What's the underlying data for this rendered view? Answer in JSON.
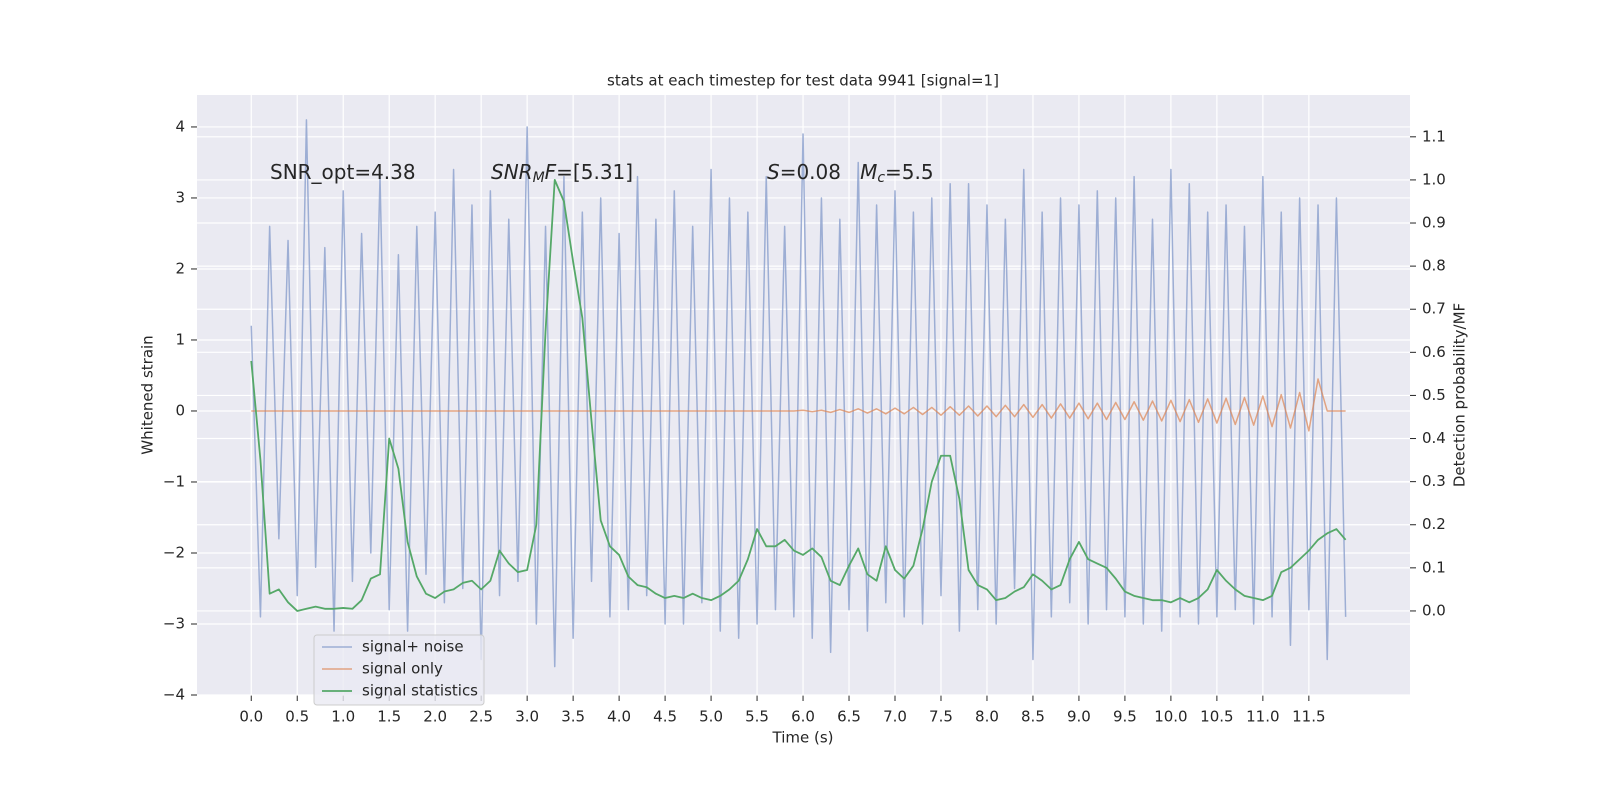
{
  "chart_data": {
    "type": "line",
    "title": "stats at each timestep for test data 9941 [signal=1]",
    "x_label": "Time (s)",
    "y_label": "Whitened strain",
    "y2_label": "Detection probability/MF",
    "annotations": [
      {
        "parts": [
          {
            "text": "SNR_opt=4.38"
          }
        ]
      },
      {
        "parts": [
          {
            "text": "SNR",
            "style": "italic"
          },
          {
            "text": "M",
            "style": "sub"
          },
          {
            "text": "F",
            "style": "italic"
          },
          {
            "text": "=[5.31]"
          }
        ]
      },
      {
        "parts": [
          {
            "text": "S",
            "style": "italic"
          },
          {
            "text": "=0.08   "
          },
          {
            "text": "M",
            "style": "italic"
          },
          {
            "text": "c",
            "style": "sub"
          },
          {
            "text": "=5.5"
          }
        ]
      }
    ],
    "x": [
      0,
      0.1,
      0.2,
      0.3,
      0.4,
      0.5,
      0.6,
      0.7,
      0.8,
      0.9,
      1,
      1.1,
      1.2,
      1.3,
      1.4,
      1.5,
      1.6,
      1.7,
      1.8,
      1.9,
      2,
      2.1,
      2.2,
      2.3,
      2.4,
      2.5,
      2.6,
      2.7,
      2.8,
      2.9,
      3,
      3.1,
      3.2,
      3.3,
      3.4,
      3.5,
      3.6,
      3.7,
      3.8,
      3.9,
      4,
      4.1,
      4.2,
      4.3,
      4.4,
      4.5,
      4.6,
      4.7,
      4.8,
      4.9,
      5,
      5.1,
      5.2,
      5.3,
      5.4,
      5.5,
      5.6,
      5.7,
      5.8,
      5.9,
      6,
      6.1,
      6.2,
      6.3,
      6.4,
      6.5,
      6.6,
      6.7,
      6.8,
      6.9,
      7,
      7.1,
      7.2,
      7.3,
      7.4,
      7.5,
      7.6,
      7.7,
      7.8,
      7.9,
      8,
      8.1,
      8.2,
      8.3,
      8.4,
      8.5,
      8.6,
      8.7,
      8.8,
      8.9,
      9,
      9.1,
      9.2,
      9.3,
      9.4,
      9.5,
      9.6,
      9.7,
      9.8,
      9.9,
      10,
      10.1,
      10.2,
      10.3,
      10.4,
      10.5,
      10.6,
      10.7,
      10.8,
      10.9,
      11,
      11.1,
      11.2,
      11.3,
      11.4,
      11.5,
      11.6,
      11.7,
      11.8,
      11.9
    ],
    "series": [
      {
        "name": "signal+ noise",
        "color": "#8fa3cf",
        "values": [
          1.2,
          -2.9,
          2.6,
          -1.8,
          2.4,
          -2.6,
          4.1,
          -2.2,
          2.3,
          -3.1,
          3.1,
          -2.4,
          2.5,
          -2.0,
          3.3,
          -2.8,
          2.2,
          -3.1,
          2.6,
          -2.3,
          2.8,
          -2.7,
          3.4,
          -2.5,
          2.9,
          -3.5,
          3.1,
          -2.6,
          2.7,
          -2.4,
          4.0,
          -3.0,
          2.6,
          -3.6,
          3.3,
          -3.2,
          2.8,
          -2.4,
          3.0,
          -2.9,
          2.5,
          -2.8,
          3.3,
          -2.6,
          2.7,
          -3.0,
          3.1,
          -3.0,
          2.6,
          -2.7,
          3.4,
          -3.1,
          3.0,
          -3.2,
          2.8,
          -3.0,
          3.3,
          -2.8,
          2.6,
          -2.9,
          3.9,
          -3.2,
          3.0,
          -3.4,
          2.7,
          -2.8,
          3.5,
          -3.1,
          2.9,
          -2.7,
          3.1,
          -2.9,
          2.8,
          -3.0,
          3.0,
          -2.6,
          3.2,
          -3.1,
          3.2,
          -2.8,
          2.9,
          -3.0,
          2.7,
          -2.5,
          3.4,
          -3.5,
          2.8,
          -2.9,
          3.0,
          -2.7,
          2.9,
          -3.0,
          3.1,
          -2.8,
          3.0,
          -2.9,
          3.3,
          -3.0,
          2.7,
          -3.1,
          3.4,
          -2.9,
          3.2,
          -3.0,
          2.8,
          -2.9,
          2.9,
          -2.8,
          2.6,
          -3.0,
          3.3,
          -2.9,
          2.8,
          -3.3,
          3.0,
          -2.8,
          2.9,
          -3.5,
          3.0,
          -2.9
        ]
      },
      {
        "name": "signal only",
        "color": "#dd8452",
        "values": [
          0,
          0,
          0,
          0,
          0,
          0,
          0,
          0,
          0,
          0,
          0,
          0,
          0,
          0,
          0,
          0,
          0,
          0,
          0,
          0,
          0,
          0,
          0,
          0,
          0,
          0,
          0,
          0,
          0,
          0,
          0,
          0,
          0,
          0,
          0,
          0,
          0,
          0,
          0,
          0,
          0,
          0,
          0,
          0,
          0,
          0,
          0,
          0,
          0,
          0,
          0,
          0,
          0,
          0,
          0,
          0,
          0,
          0,
          0,
          0,
          0.01,
          -0.01,
          0.01,
          -0.02,
          0.02,
          -0.02,
          0.03,
          -0.03,
          0.03,
          -0.04,
          0.04,
          -0.04,
          0.05,
          -0.05,
          0.05,
          -0.06,
          0.06,
          -0.06,
          0.07,
          -0.07,
          0.07,
          -0.08,
          0.08,
          -0.08,
          0.09,
          -0.09,
          0.09,
          -0.1,
          0.1,
          -0.1,
          0.11,
          -0.11,
          0.11,
          -0.12,
          0.12,
          -0.12,
          0.13,
          -0.13,
          0.14,
          -0.14,
          0.15,
          -0.15,
          0.16,
          -0.16,
          0.17,
          -0.17,
          0.18,
          -0.19,
          0.19,
          -0.2,
          0.21,
          -0.22,
          0.23,
          -0.24,
          0.26,
          -0.28,
          0.45,
          0,
          0,
          0
        ]
      },
      {
        "name": "signal statistics",
        "color": "#55a868",
        "axis": "y2",
        "values": [
          0.58,
          0.35,
          0.04,
          0.05,
          0.02,
          0.0,
          0.005,
          0.01,
          0.005,
          0.005,
          0.007,
          0.005,
          0.025,
          0.075,
          0.085,
          0.4,
          0.33,
          0.16,
          0.08,
          0.04,
          0.03,
          0.045,
          0.05,
          0.065,
          0.07,
          0.05,
          0.07,
          0.14,
          0.11,
          0.09,
          0.095,
          0.2,
          0.65,
          1.0,
          0.95,
          0.81,
          0.68,
          0.44,
          0.21,
          0.15,
          0.13,
          0.08,
          0.06,
          0.055,
          0.04,
          0.03,
          0.035,
          0.03,
          0.04,
          0.03,
          0.025,
          0.035,
          0.05,
          0.07,
          0.12,
          0.19,
          0.15,
          0.15,
          0.165,
          0.14,
          0.13,
          0.145,
          0.125,
          0.07,
          0.06,
          0.105,
          0.145,
          0.085,
          0.07,
          0.15,
          0.095,
          0.075,
          0.105,
          0.19,
          0.3,
          0.36,
          0.36,
          0.26,
          0.095,
          0.06,
          0.05,
          0.025,
          0.03,
          0.045,
          0.055,
          0.085,
          0.07,
          0.05,
          0.06,
          0.12,
          0.16,
          0.12,
          0.11,
          0.1,
          0.075,
          0.045,
          0.035,
          0.03,
          0.025,
          0.025,
          0.02,
          0.03,
          0.02,
          0.03,
          0.05,
          0.095,
          0.07,
          0.05,
          0.035,
          0.03,
          0.025,
          0.035,
          0.09,
          0.1,
          0.12,
          0.14,
          0.165,
          0.18,
          0.19,
          0.165
        ]
      }
    ],
    "xlim": [
      -0.59,
      12.6
    ],
    "xticks": [
      {
        "value": 0,
        "label": "0.0"
      },
      0.5,
      {
        "value": 1,
        "label": "1.0"
      },
      1.5,
      {
        "value": 2,
        "label": "2.0"
      },
      2.5,
      {
        "value": 3,
        "label": "3.0"
      },
      3.5,
      {
        "value": 4,
        "label": "4.0"
      },
      4.5,
      {
        "value": 5,
        "label": "5.0"
      },
      5.5,
      {
        "value": 6,
        "label": "6.0"
      },
      6.5,
      {
        "value": 7,
        "label": "7.0"
      },
      7.5,
      {
        "value": 8,
        "label": "8.0"
      },
      8.5,
      {
        "value": 9,
        "label": "9.0"
      },
      9.5,
      {
        "value": 10,
        "label": "10.0"
      },
      10.5,
      {
        "value": 11,
        "label": "11.0"
      },
      11.5
    ],
    "ylim": [
      -4,
      4.45
    ],
    "yticks": [
      {
        "value": -4,
        "label": "−4"
      },
      {
        "value": -3,
        "label": "−3"
      },
      {
        "value": -2,
        "label": "−2"
      },
      {
        "value": -1,
        "label": "−1"
      },
      0,
      1,
      2,
      3,
      4
    ],
    "y2lim": [
      -0.195,
      1.197
    ],
    "y2ticks": [
      {
        "value": 0,
        "label": "0.0"
      },
      0.1,
      0.2,
      0.3,
      0.4,
      0.5,
      0.6,
      0.7,
      0.8,
      0.9,
      {
        "value": 1,
        "label": "1.0"
      },
      1.1
    ],
    "grid": true,
    "legend": "lower left"
  }
}
